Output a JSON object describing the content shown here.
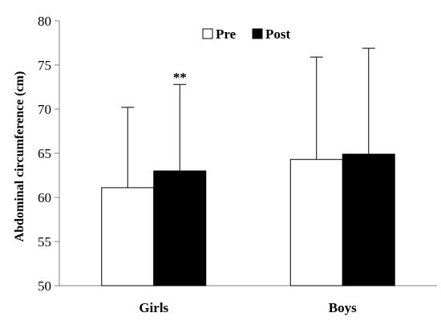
{
  "chart_data": {
    "type": "bar",
    "categories": [
      "Girls",
      "Boys"
    ],
    "series": [
      {
        "name": "Pre",
        "values": [
          61.1,
          64.3
        ],
        "errors": [
          9.1,
          11.6
        ],
        "color": "#ffffff"
      },
      {
        "name": "Post",
        "values": [
          63.0,
          64.9
        ],
        "errors": [
          9.8,
          12.0
        ],
        "color": "#000000"
      }
    ],
    "title": "",
    "xlabel": "",
    "ylabel": "Abdominal circumference (cm)",
    "ylim": [
      50,
      80
    ],
    "yticks": [
      50,
      55,
      60,
      65,
      70,
      75,
      80
    ],
    "grid": false,
    "legend_position": "top-center",
    "annotations": [
      {
        "text": "**",
        "category": "Girls",
        "series": "Post"
      }
    ]
  }
}
